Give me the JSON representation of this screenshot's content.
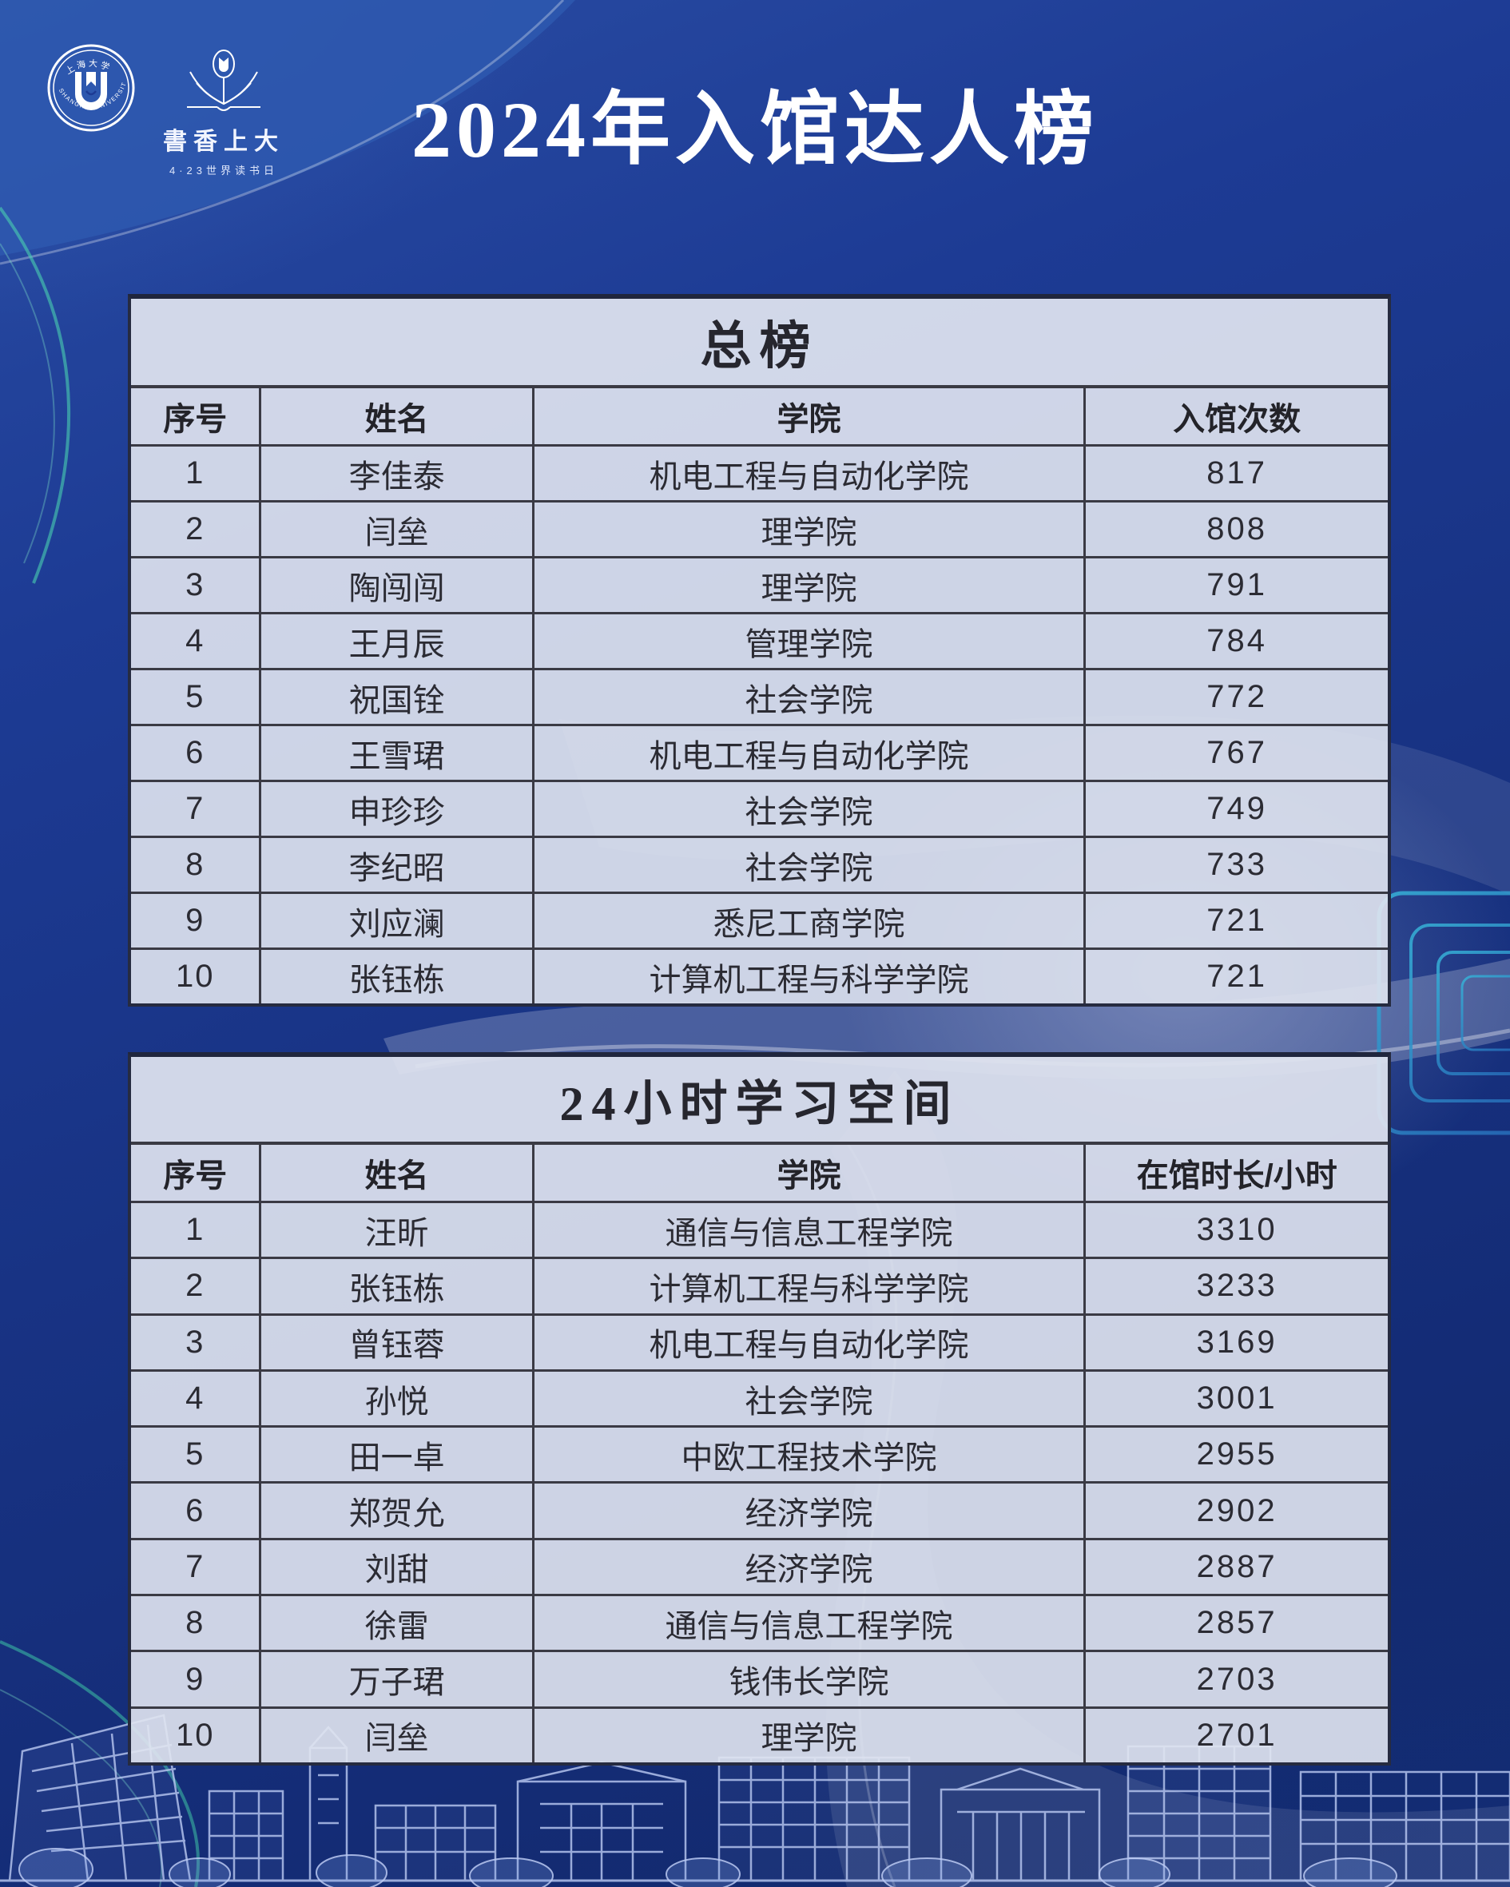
{
  "page": {
    "title": "2024年入馆达人榜"
  },
  "logos": {
    "university_seal": {
      "name_zh": "上海大学",
      "name_en": "SHANGHAI UNIVERSITY"
    },
    "reading_festival": {
      "title": "書香上大",
      "subtitle": "4·23世界读书日"
    }
  },
  "tables": [
    {
      "title": "总榜",
      "headers": [
        "序号",
        "姓名",
        "学院",
        "入馆次数"
      ],
      "rows": [
        [
          "1",
          "李佳泰",
          "机电工程与自动化学院",
          "817"
        ],
        [
          "2",
          "闫垒",
          "理学院",
          "808"
        ],
        [
          "3",
          "陶闯闯",
          "理学院",
          "791"
        ],
        [
          "4",
          "王月辰",
          "管理学院",
          "784"
        ],
        [
          "5",
          "祝国铨",
          "社会学院",
          "772"
        ],
        [
          "6",
          "王雪珺",
          "机电工程与自动化学院",
          "767"
        ],
        [
          "7",
          "申珍珍",
          "社会学院",
          "749"
        ],
        [
          "8",
          "李纪昭",
          "社会学院",
          "733"
        ],
        [
          "9",
          "刘应澜",
          "悉尼工商学院",
          "721"
        ],
        [
          "10",
          "张钰栋",
          "计算机工程与科学学院",
          "721"
        ]
      ]
    },
    {
      "title": "24小时学习空间",
      "headers": [
        "序号",
        "姓名",
        "学院",
        "在馆时长/小时"
      ],
      "rows": [
        [
          "1",
          "汪昕",
          "通信与信息工程学院",
          "3310"
        ],
        [
          "2",
          "张钰栋",
          "计算机工程与科学学院",
          "3233"
        ],
        [
          "3",
          "曾钰蓉",
          "机电工程与自动化学院",
          "3169"
        ],
        [
          "4",
          "孙悦",
          "社会学院",
          "3001"
        ],
        [
          "5",
          "田一卓",
          "中欧工程技术学院",
          "2955"
        ],
        [
          "6",
          "郑贺允",
          "经济学院",
          "2902"
        ],
        [
          "7",
          "刘甜",
          "经济学院",
          "2887"
        ],
        [
          "8",
          "徐雷",
          "通信与信息工程学院",
          "2857"
        ],
        [
          "9",
          "万子珺",
          "钱伟长学院",
          "2703"
        ],
        [
          "10",
          "闫垒",
          "理学院",
          "2701"
        ]
      ]
    }
  ],
  "colors": {
    "background_blue": "#183384",
    "panel_light": "#e0e4f0",
    "table_border": "#3a3a44",
    "text_dark": "#2b2b33",
    "title_white": "#ffffff",
    "accent_teal": "#3fc3a6",
    "lineart_blue": "#b9c9f3"
  }
}
